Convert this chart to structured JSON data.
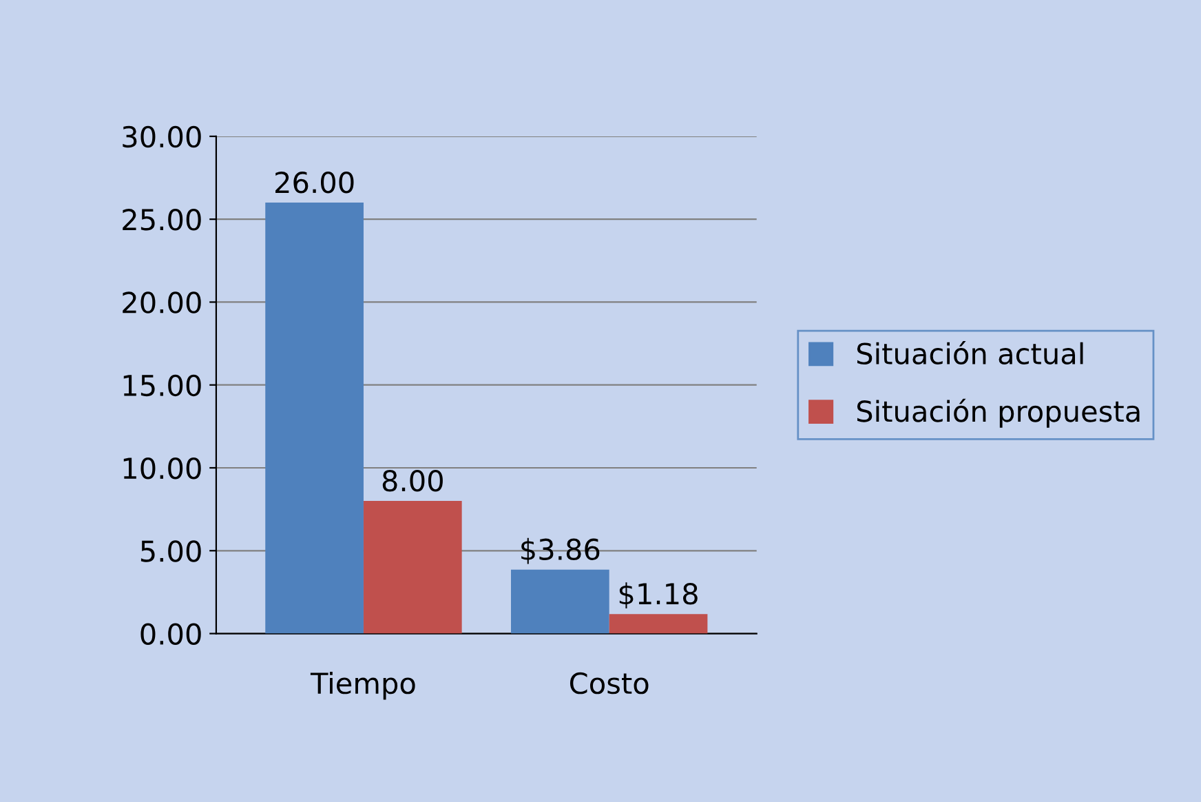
{
  "chart_data": {
    "type": "bar",
    "categories": [
      "Tiempo",
      "Costo"
    ],
    "series": [
      {
        "name": "Situación actual",
        "color": "#4f81bd",
        "values": [
          26.0,
          3.86
        ],
        "value_labels": [
          "26.00",
          "$3.86"
        ]
      },
      {
        "name": "Situación propuesta",
        "color": "#c0504d",
        "values": [
          8.0,
          1.18
        ],
        "value_labels": [
          "8.00",
          "$1.18"
        ]
      }
    ],
    "ylim": [
      0,
      30
    ],
    "yticks": [
      {
        "value": 0,
        "label": "0.00"
      },
      {
        "value": 5,
        "label": "5.00"
      },
      {
        "value": 10,
        "label": "10.00"
      },
      {
        "value": 15,
        "label": "15.00"
      },
      {
        "value": 20,
        "label": "20.00"
      },
      {
        "value": 25,
        "label": "25.00"
      },
      {
        "value": 30,
        "label": "30.00"
      }
    ],
    "grid": "y",
    "legend": "right"
  }
}
